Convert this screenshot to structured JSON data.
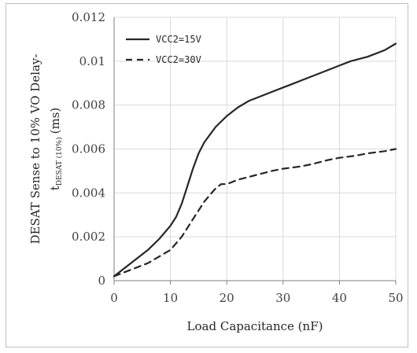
{
  "chart_data": {
    "type": "line",
    "xlabel": "Load Capacitance (nF)",
    "ylabel_line1": "DESAT Sense to 10% VO Delay-",
    "ylabel_line2_main": "t",
    "ylabel_line2_sub": "DESAT (10%)",
    "ylabel_line2_unit": "(ms)",
    "xlim": [
      0,
      50
    ],
    "ylim": [
      0,
      0.012
    ],
    "x_ticks": [
      "0",
      "10",
      "20",
      "30",
      "40",
      "50"
    ],
    "y_ticks": [
      "0",
      "0.002",
      "0.004",
      "0.006",
      "0.008",
      "0.01",
      "0.012"
    ],
    "grid": true,
    "legend_position": "top-left",
    "series": [
      {
        "name": "VCC2=15V",
        "style": "solid",
        "x": [
          0,
          2,
          4,
          6,
          8,
          10,
          11,
          12,
          13,
          14,
          15,
          16,
          18,
          20,
          22,
          24,
          26,
          28,
          30,
          32,
          35,
          38,
          40,
          42,
          45,
          48,
          50
        ],
        "y": [
          0.0002,
          0.0006,
          0.001,
          0.0014,
          0.0019,
          0.0025,
          0.0029,
          0.0035,
          0.0043,
          0.0051,
          0.0058,
          0.0063,
          0.007,
          0.0075,
          0.0079,
          0.0082,
          0.0084,
          0.0086,
          0.0088,
          0.009,
          0.0093,
          0.0096,
          0.0098,
          0.01,
          0.0102,
          0.0105,
          0.0108
        ]
      },
      {
        "name": "VCC2=30V",
        "style": "dashed",
        "x": [
          0,
          2,
          4,
          6,
          8,
          10,
          11,
          12,
          13,
          14,
          15,
          16,
          17,
          18,
          19,
          20,
          22,
          25,
          28,
          30,
          33,
          35,
          38,
          40,
          43,
          45,
          48,
          50
        ],
        "y": [
          0.0002,
          0.0004,
          0.0006,
          0.0008,
          0.0011,
          0.0014,
          0.0017,
          0.002,
          0.0024,
          0.0028,
          0.0032,
          0.0036,
          0.0039,
          0.0042,
          0.0044,
          0.0044,
          0.0046,
          0.0048,
          0.005,
          0.0051,
          0.0052,
          0.0053,
          0.0055,
          0.0056,
          0.0057,
          0.0058,
          0.0059,
          0.006
        ]
      }
    ],
    "colors": {
      "line": "#262626",
      "grid": "#d9d9d9",
      "axis": "#7f7f7f",
      "frame": "#bfbfbf"
    }
  }
}
